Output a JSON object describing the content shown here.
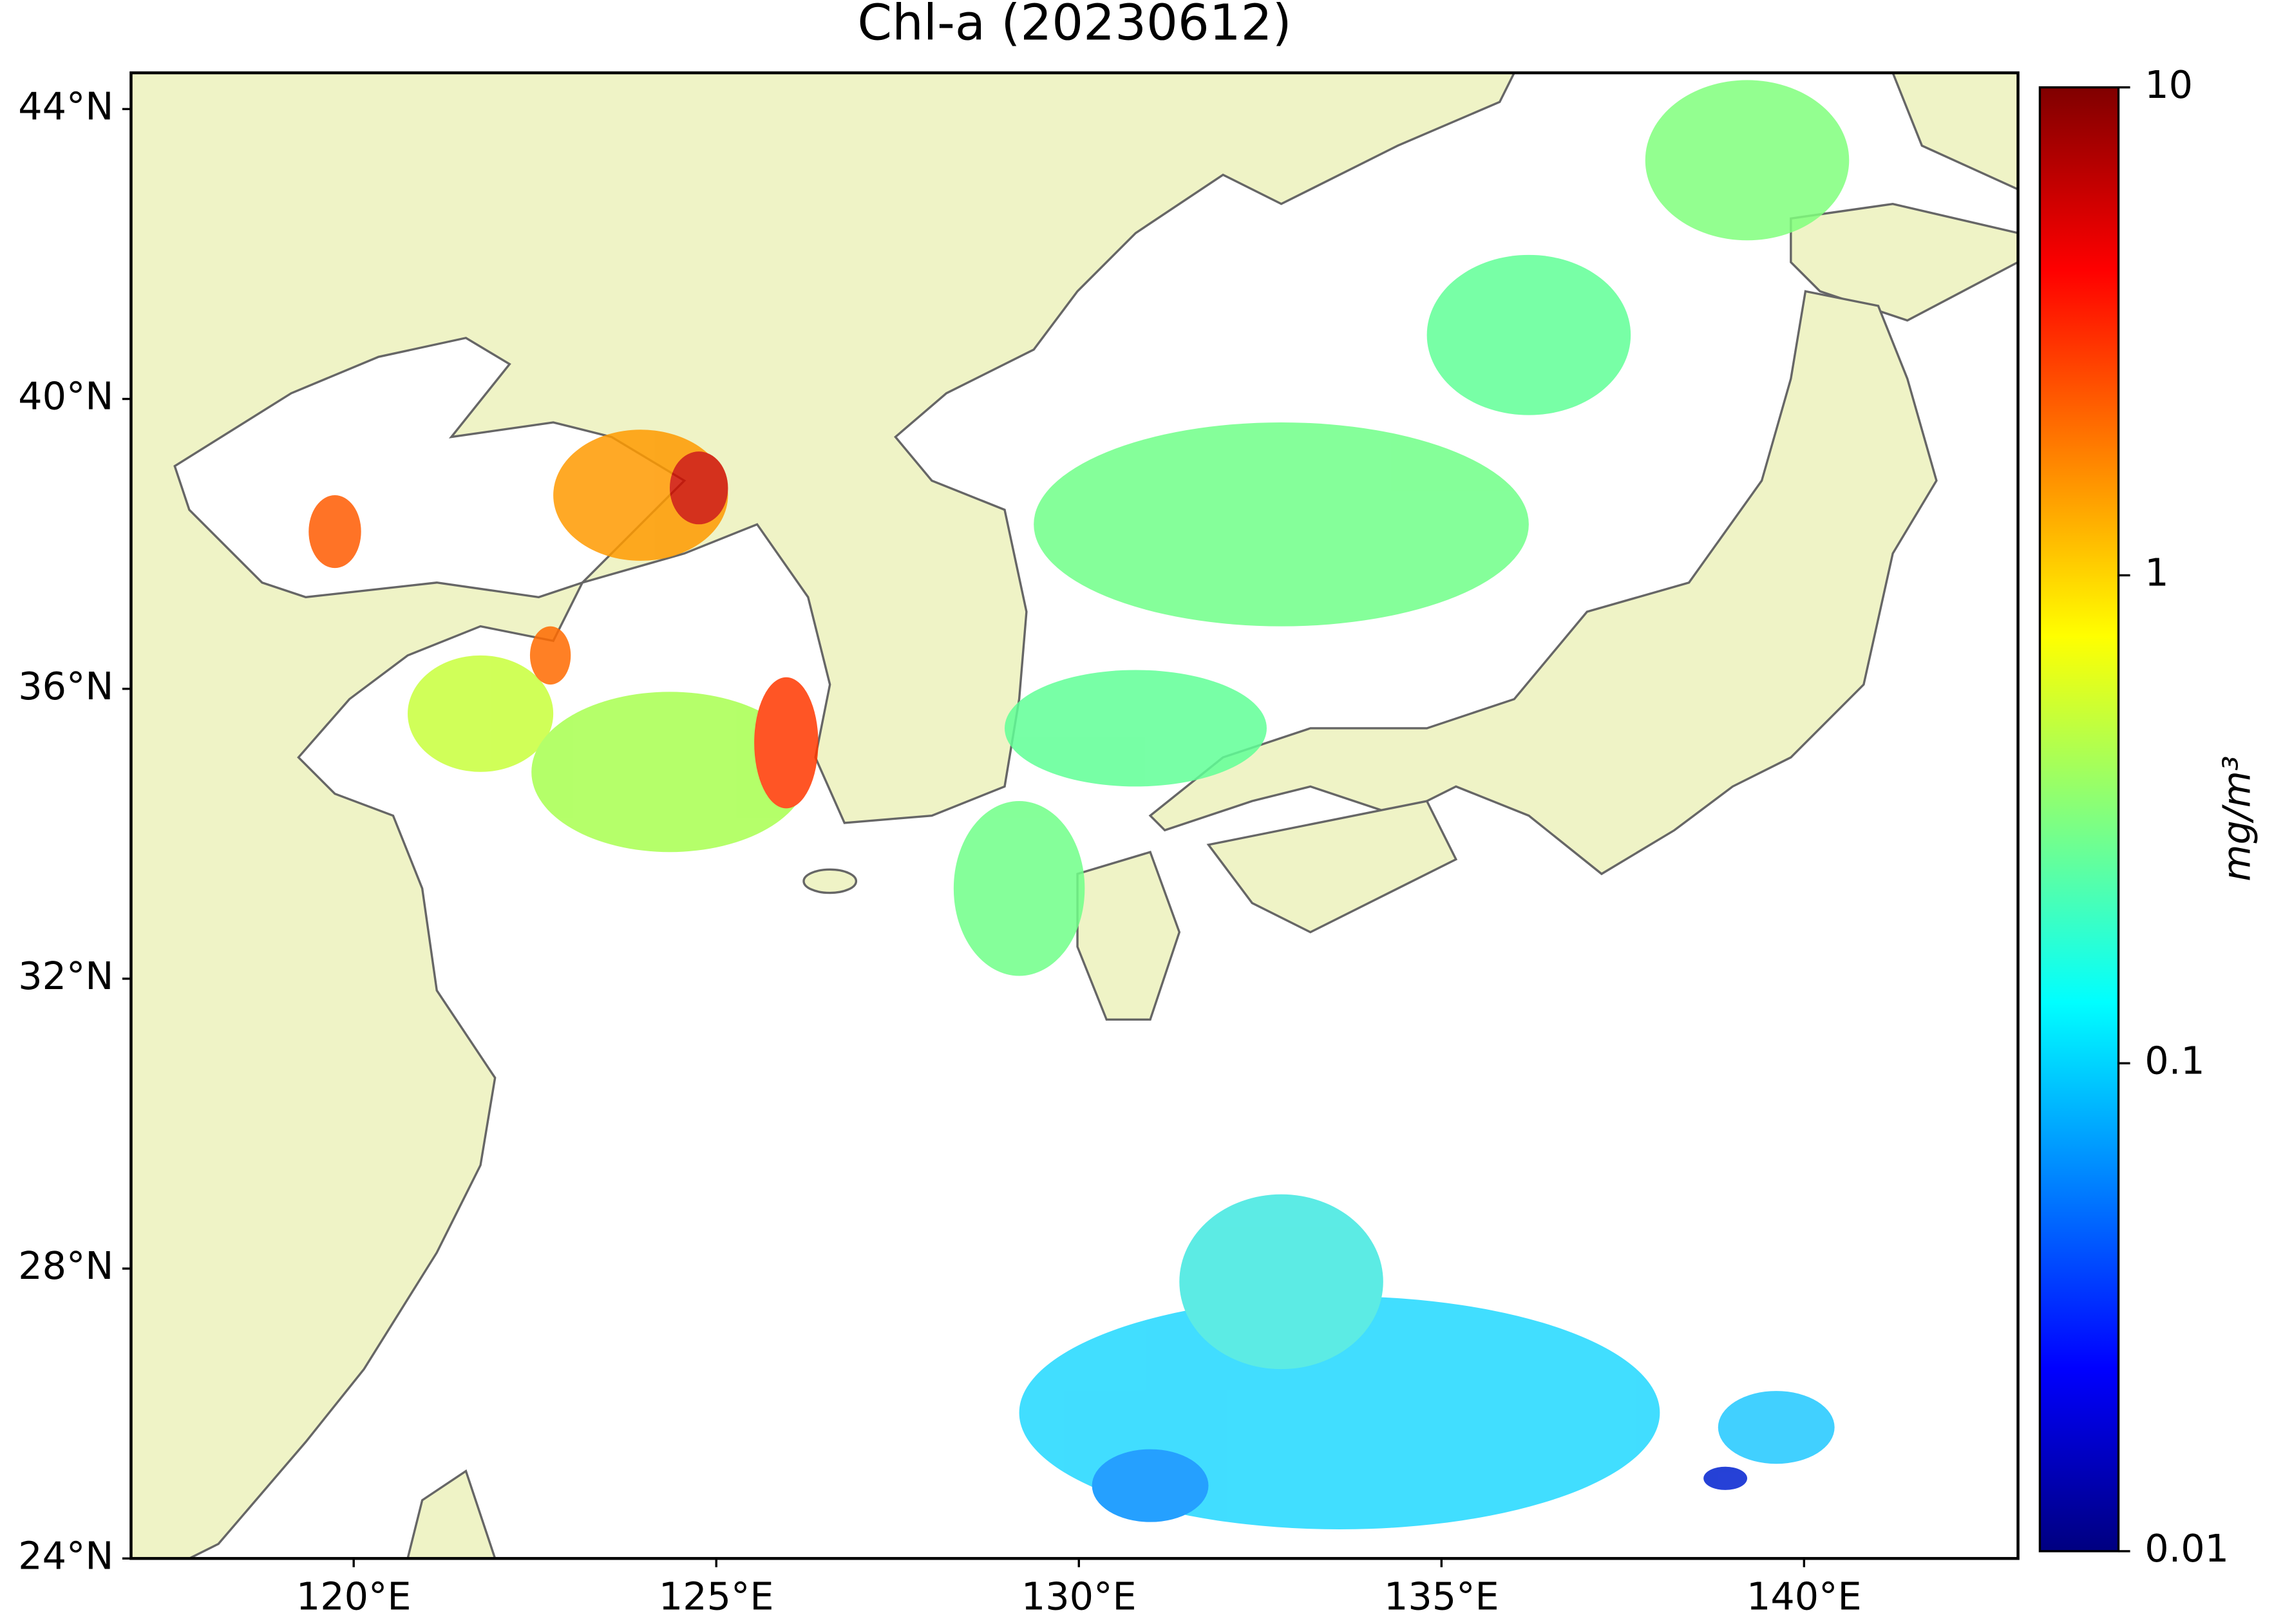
{
  "chart_data": {
    "type": "map",
    "title": "Chl-a (20230612)",
    "xlim": [
      116.93,
      142.95
    ],
    "ylim": [
      24,
      44.5
    ],
    "xticks": [
      {
        "value": 120,
        "label": "120°E"
      },
      {
        "value": 125,
        "label": "125°E"
      },
      {
        "value": 130,
        "label": "130°E"
      },
      {
        "value": 135,
        "label": "135°E"
      },
      {
        "value": 140,
        "label": "140°E"
      }
    ],
    "yticks": [
      {
        "value": 24,
        "label": "24°N"
      },
      {
        "value": 28,
        "label": "28°N"
      },
      {
        "value": 32,
        "label": "32°N"
      },
      {
        "value": 36,
        "label": "36°N"
      },
      {
        "value": 40,
        "label": "40°N"
      },
      {
        "value": 44,
        "label": "44°N"
      }
    ],
    "colorbar": {
      "label": "mg/m³",
      "lim": [
        0.01,
        10
      ],
      "ticks": [
        0.01,
        0.1,
        1,
        10
      ],
      "scale": "log",
      "colormap": "jet"
    }
  }
}
